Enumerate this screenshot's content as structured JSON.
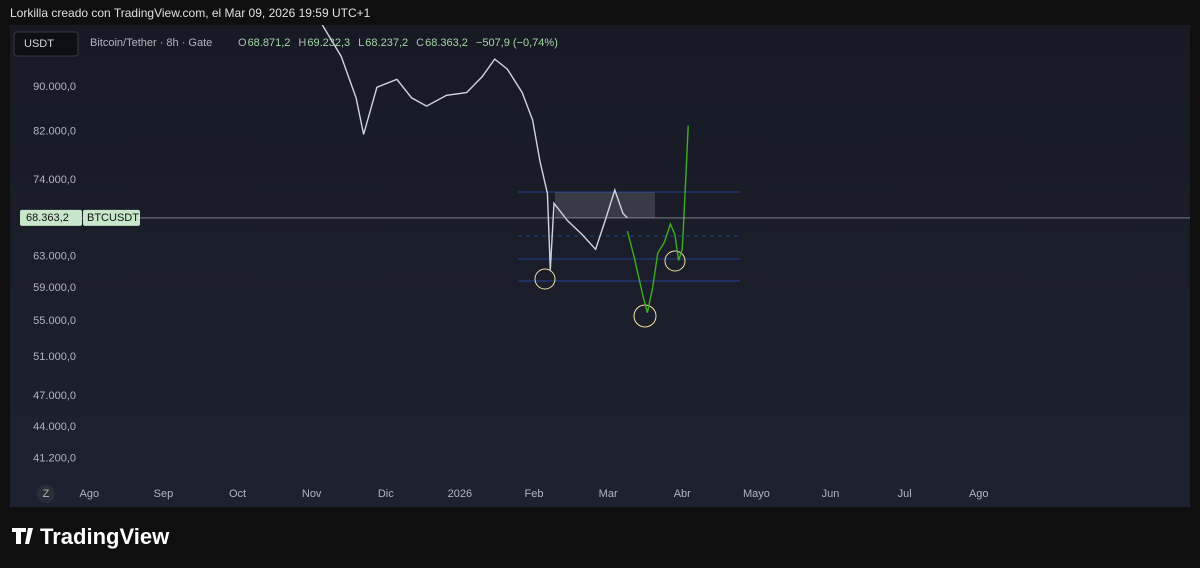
{
  "header": "Lorkilla creado con TradingView.com, el Mar 09, 2026 19:59 UTC+1",
  "footer": "TradingView",
  "chart_data": {
    "type": "line",
    "currency_button": "USDT",
    "symbol": "Bitcoin/Tether · 8h · Gate",
    "legend_ohlc": [
      {
        "name": "O",
        "value": 68871.2,
        "label": "68.871,2"
      },
      {
        "name": "H",
        "value": 69232.3,
        "label": "69.232,3"
      },
      {
        "name": "L",
        "value": 68237.2,
        "label": "68.237,2"
      },
      {
        "name": "C",
        "value": 68363.2,
        "label": "68.363,2"
      }
    ],
    "change_label": "−507,9 (−0,74%)",
    "last_price": {
      "value": 68363.2,
      "label": "68.363,2"
    },
    "last_price_ticker": "BTCUSDT",
    "log_scale": true,
    "ylim": [
      39300,
      102600
    ],
    "xlim": [
      -1.07,
      14.85
    ],
    "yticks": [
      {
        "value": 90000,
        "label": "90.000,0"
      },
      {
        "value": 82000,
        "label": "82.000,0"
      },
      {
        "value": 74000,
        "label": "74.000,0"
      },
      {
        "value": 63000,
        "label": "63.000,0"
      },
      {
        "value": 59000,
        "label": "59.000,0"
      },
      {
        "value": 55000,
        "label": "55.000,0"
      },
      {
        "value": 51000,
        "label": "51.000,0"
      },
      {
        "value": 47000,
        "label": "47.000,0"
      },
      {
        "value": 44000,
        "label": "44.000,0"
      },
      {
        "value": 41200,
        "label": "41.200,0"
      }
    ],
    "xticks": [
      {
        "value": 0,
        "label": "Ago"
      },
      {
        "value": 1,
        "label": "Sep"
      },
      {
        "value": 2,
        "label": "Oct"
      },
      {
        "value": 3,
        "label": "Nov"
      },
      {
        "value": 4,
        "label": "Dic"
      },
      {
        "value": 5,
        "label": "2026"
      },
      {
        "value": 6,
        "label": "Feb"
      },
      {
        "value": 7,
        "label": "Mar"
      },
      {
        "value": 8,
        "label": "Abr"
      },
      {
        "value": 9,
        "label": "Mayo"
      },
      {
        "value": 10,
        "label": "Jun"
      },
      {
        "value": 11,
        "label": "Jul"
      },
      {
        "value": 12,
        "label": "Ago"
      }
    ],
    "series": [
      {
        "color": "#d1d4dc",
        "x": [
          3.13,
          3.4,
          3.6,
          3.7,
          3.88,
          4.15,
          4.35,
          4.55,
          4.82,
          5.09,
          5.3,
          5.47,
          5.64,
          5.84,
          5.98,
          6.08,
          6.18,
          6.22,
          6.27,
          6.45,
          6.65,
          6.83,
          6.96,
          7.09,
          7.2,
          7.26
        ],
        "values": [
          103000,
          96000,
          88000,
          81500,
          90000,
          91500,
          88000,
          86500,
          88500,
          89000,
          92000,
          95500,
          93500,
          89000,
          84000,
          77000,
          72000,
          61300,
          70500,
          68000,
          66000,
          64000,
          68000,
          72500,
          69000,
          68363.2
        ]
      },
      {
        "color": "#3fae1c",
        "x": [
          7.26,
          7.35,
          7.47,
          7.53,
          7.6,
          7.67,
          7.76,
          7.84,
          7.9,
          7.95,
          8.0,
          8.05,
          8.08
        ],
        "values": [
          66500,
          63000,
          58000,
          56000,
          59000,
          63500,
          65000,
          67500,
          66000,
          62500,
          64000,
          75000,
          83000
        ]
      }
    ],
    "reset_button": "Z"
  }
}
